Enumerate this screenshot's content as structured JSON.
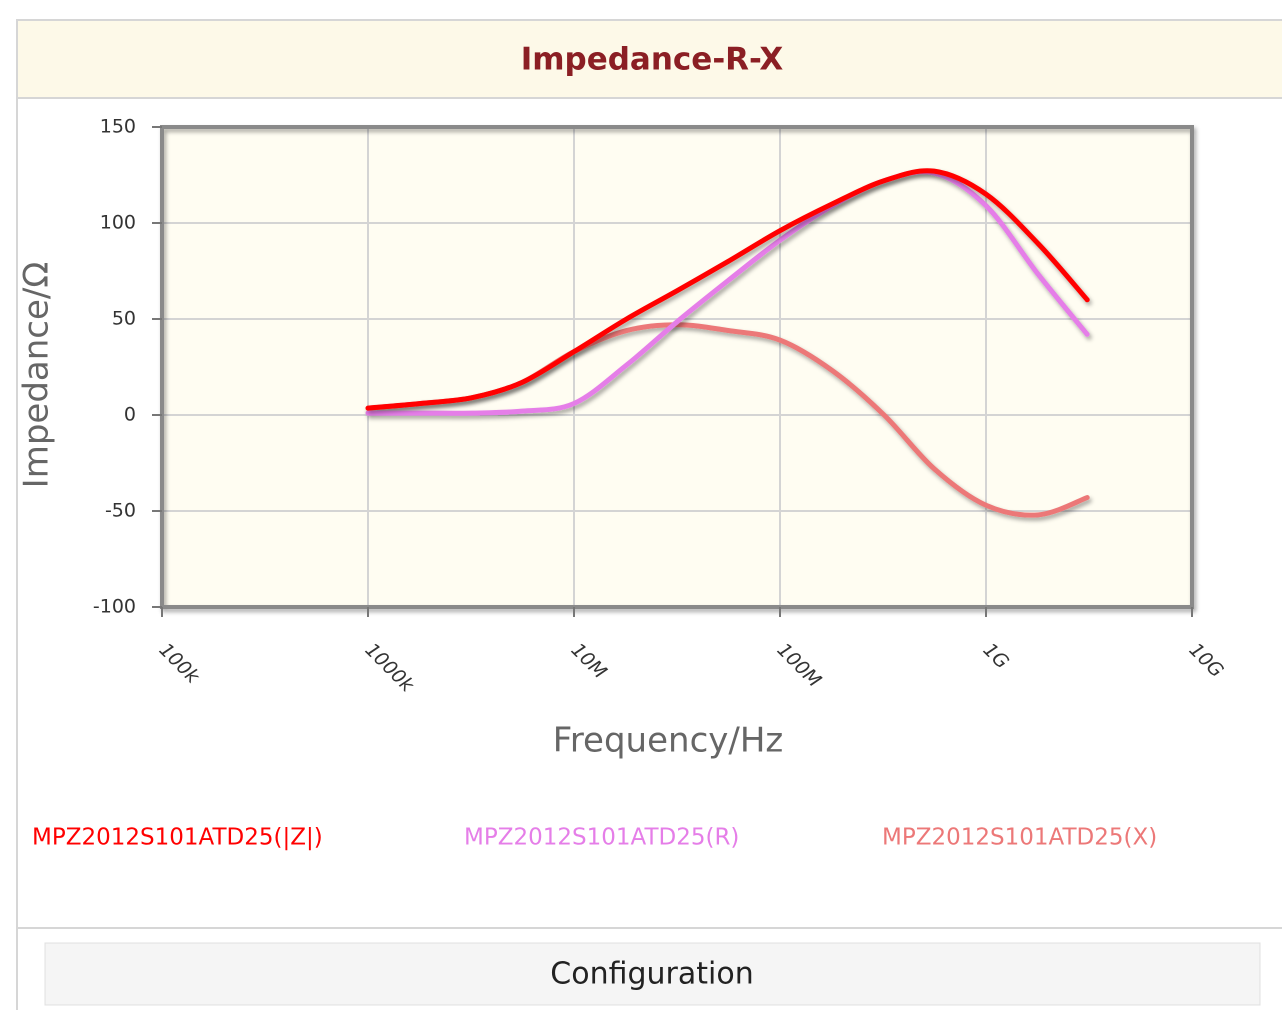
{
  "chart_data": {
    "type": "line",
    "title": "Impedance-R-X",
    "xlabel": "Frequency/Hz",
    "ylabel": "Impedance/Ω",
    "xscale": "log",
    "grid": true,
    "legend": "bottom",
    "xlim": [
      100000,
      10000000000
    ],
    "xticks": [
      {
        "value": 100000,
        "label": "100k"
      },
      {
        "value": 1000000,
        "label": "1000k"
      },
      {
        "value": 10000000,
        "label": "10M"
      },
      {
        "value": 100000000,
        "label": "100M"
      },
      {
        "value": 1000000000,
        "label": "1G"
      },
      {
        "value": 10000000000,
        "label": "10G"
      }
    ],
    "ylim": [
      -100,
      150
    ],
    "yticks": [
      -100,
      -50,
      0,
      50,
      100,
      150
    ],
    "x": [
      1000000,
      1800000,
      3200000,
      5600000,
      10000000,
      18000000,
      32000000,
      56000000,
      100000000,
      180000000,
      320000000,
      560000000,
      1000000000,
      1800000000,
      3100000000
    ],
    "series": [
      {
        "name": "MPZ2012S101ATD25(|Z|)",
        "color": "#ff0000",
        "values": [
          3.6,
          6,
          9,
          17,
          33,
          50,
          65,
          80,
          96,
          110,
          122,
          127,
          115,
          89,
          60
        ]
      },
      {
        "name": "MPZ2012S101ATD25(R)",
        "color": "#e57ee8",
        "values": [
          1,
          1,
          1,
          2,
          6,
          26,
          49,
          70,
          91,
          109,
          122,
          126,
          109,
          73,
          42
        ]
      },
      {
        "name": "MPZ2012S101ATD25(X)",
        "color": "#ec7878",
        "values": [
          3.5,
          6,
          9,
          17,
          33,
          44,
          47,
          44,
          39,
          23,
          0,
          -28,
          -47,
          -52,
          -43
        ]
      }
    ]
  },
  "button": "Configuration"
}
